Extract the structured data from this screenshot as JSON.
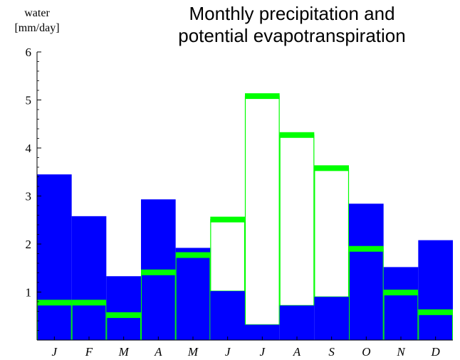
{
  "chart_data": {
    "type": "bar",
    "title_lines": [
      "Monthly precipitation and",
      "potential evapotranspiration"
    ],
    "ylabel_lines": [
      "water",
      "[mm/day]"
    ],
    "categories": [
      "J",
      "F",
      "M",
      "A",
      "M",
      "J",
      "J",
      "A",
      "S",
      "O",
      "N",
      "D"
    ],
    "series": [
      {
        "name": "",
        "values": [
          3.45,
          2.58,
          1.33,
          2.93,
          1.92,
          1.02,
          0.32,
          0.72,
          0.9,
          2.84,
          1.52,
          2.08
        ]
      },
      {
        "name": "",
        "values": [
          0.78,
          0.78,
          0.52,
          1.41,
          1.77,
          2.51,
          5.08,
          4.27,
          3.58,
          1.9,
          0.99,
          0.58
        ]
      }
    ],
    "ylim": [
      0,
      6
    ],
    "yticks": [
      1,
      2,
      3,
      4,
      5,
      6
    ],
    "colors": {
      "precipitation": "#0000ff",
      "evapotranspiration": "#00ff00"
    },
    "grid": false
  }
}
